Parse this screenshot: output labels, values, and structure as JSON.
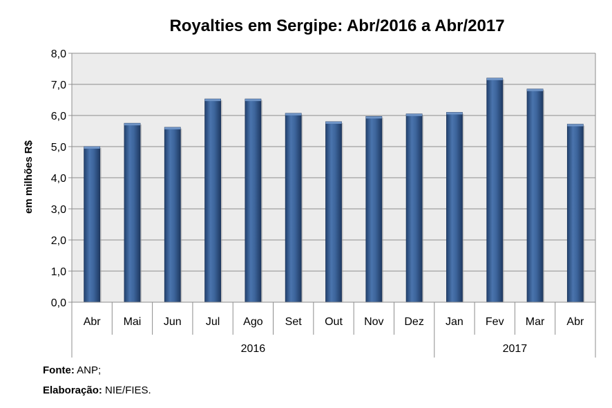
{
  "chart_data": {
    "type": "bar",
    "title": "Royalties em Sergipe: Abr/2016 a Abr/2017",
    "ylabel": "em milhões R$",
    "xlabel": "",
    "ylim": [
      0,
      8
    ],
    "yticks": [
      "0,0",
      "1,0",
      "2,0",
      "3,0",
      "4,0",
      "5,0",
      "6,0",
      "7,0",
      "8,0"
    ],
    "categories": [
      "Abr",
      "Mai",
      "Jun",
      "Jul",
      "Ago",
      "Set",
      "Out",
      "Nov",
      "Dez",
      "Jan",
      "Fev",
      "Mar",
      "Abr"
    ],
    "values": [
      5.0,
      5.75,
      5.62,
      6.53,
      6.53,
      6.07,
      5.8,
      5.97,
      6.05,
      6.1,
      7.2,
      6.85,
      5.72
    ],
    "year_groups": [
      {
        "label": "2016",
        "count": 9
      },
      {
        "label": "2017",
        "count": 4
      }
    ],
    "grid": true,
    "legend": "none",
    "bar_color": "#3a5f95"
  },
  "footer": {
    "source_label": "Fonte:",
    "source_value": "ANP;",
    "elab_label": "Elaboração:",
    "elab_value": "NIE/FIES."
  }
}
